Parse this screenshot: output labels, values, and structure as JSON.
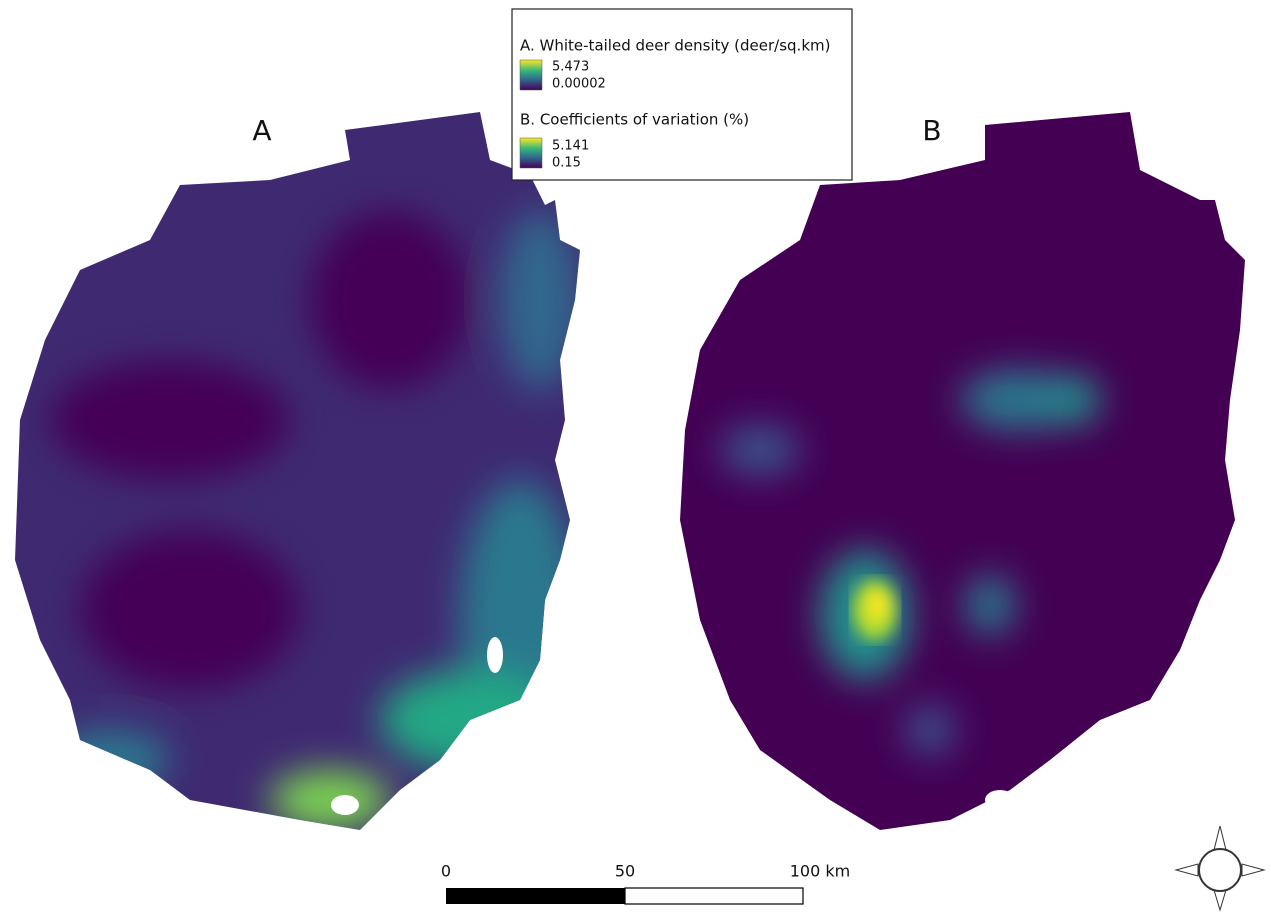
{
  "panels": [
    {
      "label": "A"
    },
    {
      "label": "B"
    }
  ],
  "legend": {
    "items": [
      {
        "title": "A. White-tailed deer density (deer/sq.km)",
        "max": "5.473",
        "min": "0.00002"
      },
      {
        "title": "B. Coefficients of variation (%)",
        "max": "5.141",
        "min": "0.15"
      }
    ]
  },
  "scale_bar": {
    "labels": [
      "0",
      "50",
      "100 km"
    ]
  }
}
